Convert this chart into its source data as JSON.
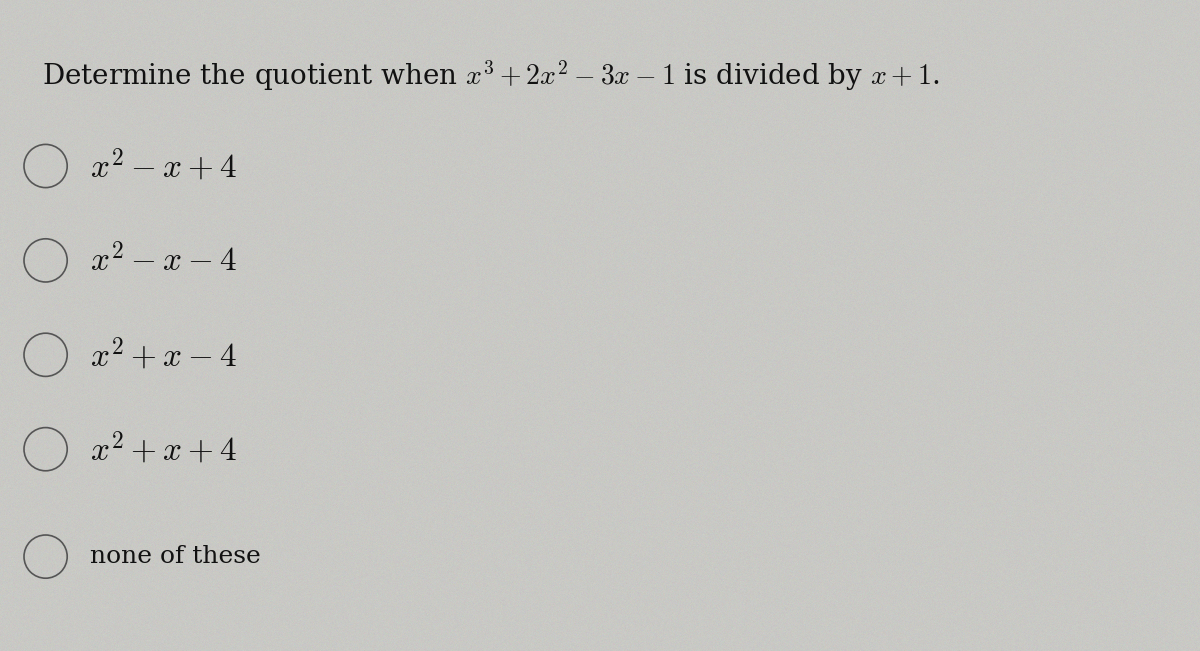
{
  "background_color": "#c9c9c5",
  "title_text_plain": "Determine the quotient when ",
  "title_math": "$x^3 + 2x^2 - 3x - 1$",
  "title_text_mid": " is divided by ",
  "title_math2": "$x + 1$",
  "title_text_end": ".",
  "options_math": [
    "$x^2 - x + 4$",
    "$x^2 - x - 4$",
    "$x^2 + x - 4$",
    "$x^2 + x + 4$"
  ],
  "option_last": "none of these",
  "title_fontsize": 20,
  "option_fontsize": 24,
  "option_last_fontsize": 18,
  "text_color": "#111111",
  "circle_color": "#555555",
  "fig_width": 12.0,
  "fig_height": 6.51
}
